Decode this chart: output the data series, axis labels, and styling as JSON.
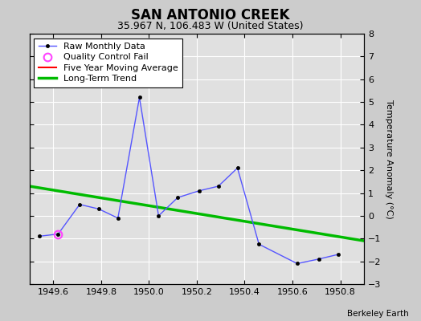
{
  "title": "SAN ANTONIO CREEK",
  "subtitle": "35.967 N, 106.483 W (United States)",
  "credit": "Berkeley Earth",
  "xlim": [
    1949.5,
    1950.9
  ],
  "ylim": [
    -3,
    8
  ],
  "yticks": [
    -3,
    -2,
    -1,
    0,
    1,
    2,
    3,
    4,
    5,
    6,
    7,
    8
  ],
  "xticks": [
    1949.6,
    1949.8,
    1950.0,
    1950.2,
    1950.4,
    1950.6,
    1950.8
  ],
  "ylabel": "Temperature Anomaly (°C)",
  "raw_x": [
    1949.54,
    1949.62,
    1949.71,
    1949.79,
    1949.87,
    1949.96,
    1950.04,
    1950.12,
    1950.21,
    1950.29,
    1950.37,
    1950.46,
    1950.62,
    1950.71,
    1950.79
  ],
  "raw_y": [
    -0.9,
    -0.8,
    0.5,
    0.3,
    -0.1,
    5.2,
    0.0,
    0.8,
    1.1,
    1.3,
    2.1,
    -1.25,
    -2.1,
    -1.9,
    -1.7
  ],
  "qc_fail_x": [
    1949.62
  ],
  "qc_fail_y": [
    -0.8
  ],
  "trend_x": [
    1949.5,
    1950.9
  ],
  "trend_y": [
    1.3,
    -1.1
  ],
  "raw_line_color": "#5555ff",
  "raw_marker_color": "#000000",
  "qc_color": "#ff44ff",
  "five_yr_color": "#ff0000",
  "longterm_color": "#00bb00",
  "background_color": "#cccccc",
  "plot_bg_color": "#e0e0e0",
  "grid_color": "#ffffff",
  "title_fontsize": 12,
  "subtitle_fontsize": 9,
  "tick_labelsize": 8,
  "legend_fontsize": 8,
  "ylabel_fontsize": 8,
  "credit_fontsize": 7.5
}
